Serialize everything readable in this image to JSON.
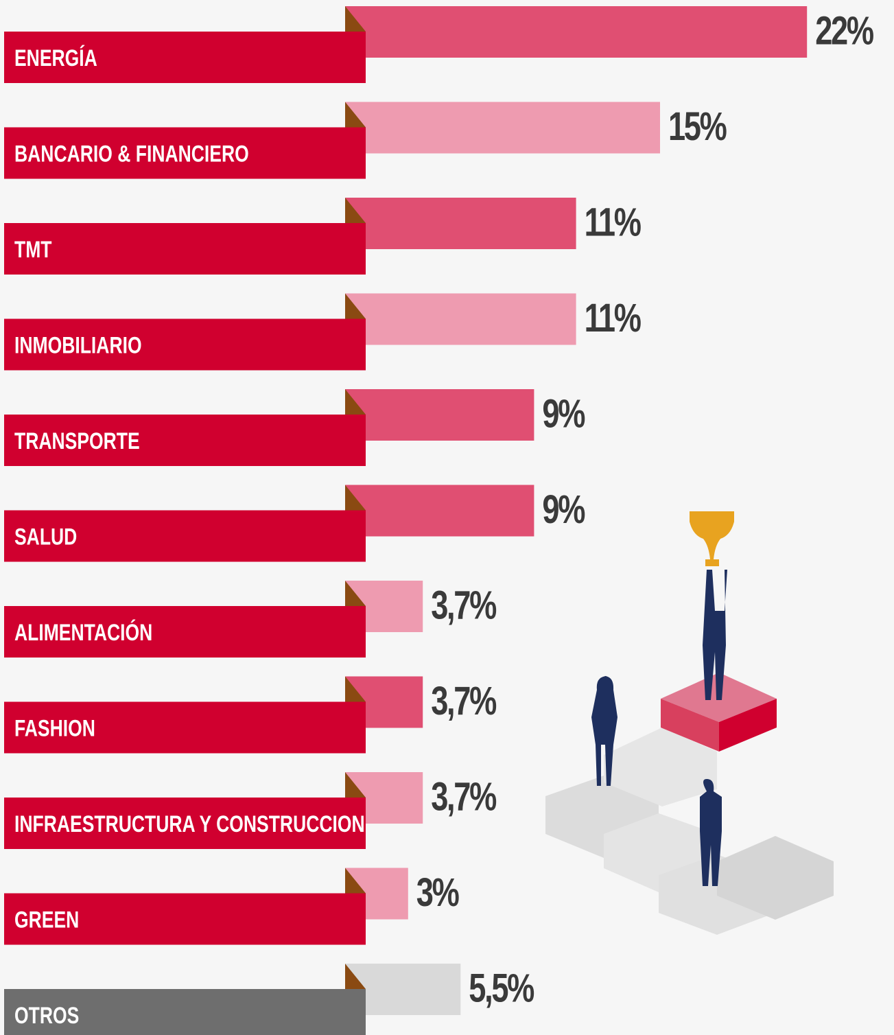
{
  "chart_data": {
    "type": "bar",
    "categories": [
      "ENERGÍA",
      "BANCARIO & FINANCIERO",
      "TMT",
      "INMOBILIARIO",
      "TRANSPORTE",
      "SALUD",
      "ALIMENTACIÓN",
      "FASHION",
      "INFRAESTRUCTURA Y CONSTRUCCION",
      "GREEN",
      "OTROS"
    ],
    "values": [
      22,
      15,
      11,
      11,
      9,
      9,
      3.7,
      3.7,
      3.7,
      3,
      5.5
    ],
    "value_labels": [
      "22%",
      "15%",
      "11%",
      "11%",
      "9%",
      "9%",
      "3,7%",
      "3,7%",
      "3,7%",
      "3%",
      "5,5%"
    ],
    "colors": [
      "#e04f72",
      "#ee9bb0",
      "#e04f72",
      "#ee9bb0",
      "#e04f72",
      "#e04f72",
      "#ee9bb0",
      "#e04f72",
      "#ee9bb0",
      "#ee9bb0",
      "#d9d9d9"
    ],
    "label_colors": [
      "#d0002f",
      "#d0002f",
      "#d0002f",
      "#d0002f",
      "#d0002f",
      "#d0002f",
      "#d0002f",
      "#d0002f",
      "#d0002f",
      "#d0002f",
      "#6e6e6e"
    ]
  }
}
